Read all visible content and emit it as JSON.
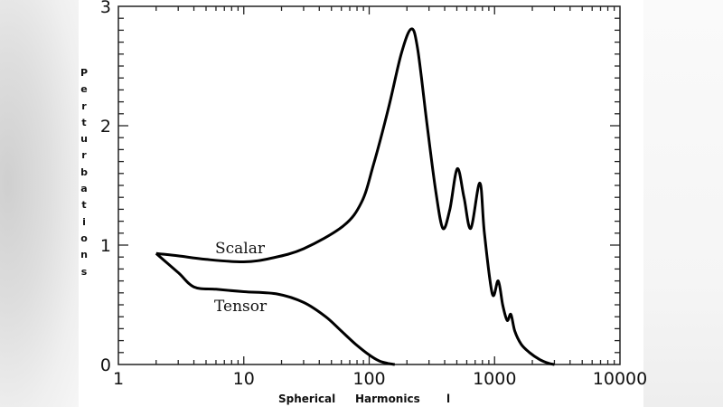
{
  "chart_data": {
    "type": "line",
    "title": "",
    "xlabel": "Spherical    Harmonics    l",
    "ylabel": "Perturbations",
    "xscale": "log",
    "xlim": [
      1,
      10000
    ],
    "ylim": [
      0,
      3
    ],
    "x_tick_labels": [
      "1",
      "10",
      "100",
      "1000",
      "10000"
    ],
    "y_tick_labels": [
      "0",
      "1",
      "2",
      "3"
    ],
    "grid": false,
    "legend": "inline labels",
    "annotations": [
      {
        "text": "Scalar",
        "x": 10,
        "y": 1.05
      },
      {
        "text": "Tensor",
        "x": 10,
        "y": 0.45
      }
    ],
    "series": [
      {
        "name": "Scalar",
        "x": [
          2,
          3,
          5,
          10,
          16.5,
          30,
          62,
          87,
          108,
          142,
          180,
          216,
          243,
          290,
          340,
          387,
          440,
          504,
          570,
          646,
          762,
          830,
          960,
          1070,
          1160,
          1260,
          1350,
          1450,
          1630,
          1900,
          2300,
          2700,
          3000
        ],
        "values": [
          0.93,
          0.91,
          0.88,
          0.86,
          0.89,
          0.97,
          1.16,
          1.36,
          1.67,
          2.14,
          2.6,
          2.81,
          2.65,
          2.0,
          1.45,
          1.14,
          1.3,
          1.64,
          1.4,
          1.14,
          1.52,
          1.1,
          0.59,
          0.7,
          0.5,
          0.37,
          0.42,
          0.28,
          0.17,
          0.1,
          0.04,
          0.01,
          0.0
        ]
      },
      {
        "name": "Tensor",
        "x": [
          2,
          3,
          4,
          6,
          10,
          18.6,
          30,
          45,
          60,
          78,
          100,
          120,
          140,
          160
        ],
        "values": [
          0.93,
          0.77,
          0.65,
          0.63,
          0.61,
          0.59,
          0.52,
          0.4,
          0.28,
          0.17,
          0.08,
          0.03,
          0.01,
          0.0
        ]
      }
    ]
  },
  "labels": {
    "scalar": "Scalar",
    "tensor": "Tensor",
    "xlabel_1": "Spherical",
    "xlabel_2": "Harmonics",
    "xlabel_3": "l",
    "ylabel_letters": [
      "P",
      "e",
      "r",
      "t",
      "u",
      "r",
      "b",
      "a",
      "t",
      "i",
      "o",
      "n",
      "s"
    ],
    "x_ticks": [
      "1",
      "10",
      "100",
      "1000",
      "10000"
    ],
    "y_ticks": [
      "0",
      "1",
      "2",
      "3"
    ]
  },
  "colors": {
    "line": "#000000",
    "axis": "#222222",
    "background": "#ffffff"
  }
}
